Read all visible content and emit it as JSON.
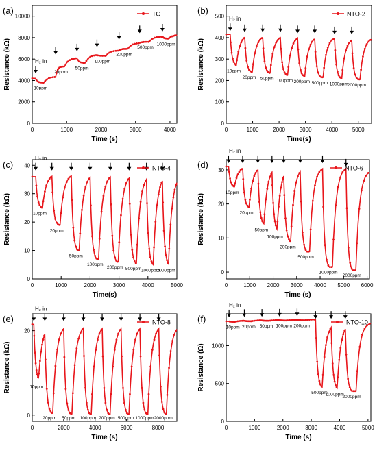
{
  "figure": {
    "panels": [
      {
        "id": "a",
        "label": "(a)",
        "legend": "TO"
      },
      {
        "id": "b",
        "label": "(b)",
        "legend": "NTO-2"
      },
      {
        "id": "c",
        "label": "(c)",
        "legend": "NTO-4"
      },
      {
        "id": "d",
        "label": "(d)",
        "legend": "NTO-6"
      },
      {
        "id": "e",
        "label": "(e)",
        "legend": "NTO-8"
      },
      {
        "id": "f",
        "label": "(f)",
        "legend": "NTO-10"
      }
    ]
  },
  "colors": {
    "series": "#e8161b",
    "axis": "#000000",
    "background": "#ffffff"
  },
  "chart_data": [
    {
      "type": "line",
      "panel_label": "(a)",
      "series_name": "TO",
      "xlabel": "Time (s)",
      "ylabel": "Resistance (kΩ)",
      "xlim": [
        0,
        4200
      ],
      "ylim": [
        0,
        11000
      ],
      "xticks": [
        0,
        1000,
        2000,
        3000,
        4000
      ],
      "yticks": [
        0,
        2000,
        4000,
        6000,
        8000,
        10000
      ],
      "legend_position": "top-right",
      "grid": false,
      "h2_in_label": "H₂ in",
      "concentration_labels": [
        "10ppm",
        "20ppm",
        "50ppm",
        "100ppm",
        "200ppm",
        "500ppm",
        "1000ppm"
      ],
      "cycles": [
        {
          "t_on": 100,
          "t_off": 680,
          "base": 4350,
          "response": 3800
        },
        {
          "t_on": 680,
          "t_off": 1300,
          "base": 6100,
          "response": 5300
        },
        {
          "t_on": 1300,
          "t_off": 1880,
          "base": 6400,
          "response": 5650
        },
        {
          "t_on": 1880,
          "t_off": 2520,
          "base": 6800,
          "response": 6300
        },
        {
          "t_on": 2520,
          "t_off": 3120,
          "base": 7500,
          "response": 6950
        },
        {
          "t_on": 3120,
          "t_off": 3780,
          "base": 8100,
          "response": 7600
        },
        {
          "t_on": 3780,
          "t_off": 4200,
          "base": 8250,
          "response": 7900
        }
      ],
      "start_value": 4200,
      "end_value": 8250
    },
    {
      "type": "line",
      "panel_label": "(b)",
      "series_name": "NTO-2",
      "xlabel": "Time(s)",
      "ylabel": "Resistance (kΩ)",
      "xlim": [
        0,
        5500
      ],
      "ylim": [
        0,
        550
      ],
      "xticks": [
        0,
        1000,
        2000,
        3000,
        4000,
        5000
      ],
      "yticks": [
        0,
        100,
        200,
        300,
        400,
        500
      ],
      "legend_position": "top-right",
      "grid": false,
      "h2_in_label": "H₂ in",
      "concentration_labels": [
        "10ppm",
        "20ppm",
        "50ppm",
        "100ppm",
        "200ppm",
        "500ppm",
        "1000ppm",
        "2000ppm"
      ],
      "cycles": [
        {
          "t_on": 150,
          "t_off": 700,
          "base": 415,
          "response": 270
        },
        {
          "t_on": 700,
          "t_off": 1380,
          "base": 410,
          "response": 240
        },
        {
          "t_on": 1380,
          "t_off": 2050,
          "base": 410,
          "response": 235
        },
        {
          "t_on": 2050,
          "t_off": 2700,
          "base": 410,
          "response": 225
        },
        {
          "t_on": 2700,
          "t_off": 3350,
          "base": 405,
          "response": 220
        },
        {
          "t_on": 3350,
          "t_off": 4100,
          "base": 405,
          "response": 215
        },
        {
          "t_on": 4100,
          "t_off": 4750,
          "base": 400,
          "response": 210
        },
        {
          "t_on": 4750,
          "t_off": 5500,
          "base": 400,
          "response": 205
        }
      ],
      "start_value": 415,
      "end_value": 390
    },
    {
      "type": "line",
      "panel_label": "(c)",
      "series_name": "NTO-4",
      "xlabel": "Time(s)",
      "ylabel": "Resistance (kΩ)",
      "xlim": [
        0,
        5000
      ],
      "ylim": [
        0,
        42
      ],
      "xticks": [
        0,
        1000,
        2000,
        3000,
        4000,
        5000
      ],
      "yticks": [
        0,
        10,
        20,
        30,
        40
      ],
      "legend_position": "top-right",
      "grid": false,
      "h2_in_label": "H₂ in",
      "concentration_labels": [
        "10ppm",
        "20ppm",
        "50ppm",
        "100ppm",
        "200ppm",
        "500ppm",
        "1000ppm",
        "2000ppm"
      ],
      "cycles": [
        {
          "t_on": 120,
          "t_off": 680,
          "base": 37,
          "response": 25
        },
        {
          "t_on": 680,
          "t_off": 1350,
          "base": 37,
          "response": 19
        },
        {
          "t_on": 1350,
          "t_off": 2000,
          "base": 37,
          "response": 10
        },
        {
          "t_on": 2000,
          "t_off": 2700,
          "base": 37,
          "response": 7
        },
        {
          "t_on": 2700,
          "t_off": 3350,
          "base": 37,
          "response": 6
        },
        {
          "t_on": 3350,
          "t_off": 3950,
          "base": 37,
          "response": 5.5
        },
        {
          "t_on": 3950,
          "t_off": 4500,
          "base": 37,
          "response": 5
        },
        {
          "t_on": 4500,
          "t_off": 5000,
          "base": 37,
          "response": 5
        }
      ],
      "start_value": 36,
      "end_value": 36
    },
    {
      "type": "line",
      "panel_label": "(d)",
      "series_name": "NTO-6",
      "xlabel": "Time (s)",
      "ylabel": "Resistance (kΩ)",
      "xlim": [
        0,
        6100
      ],
      "ylim": [
        -2,
        33
      ],
      "xticks": [
        0,
        1000,
        2000,
        3000,
        4000,
        5000,
        6000
      ],
      "yticks": [
        0,
        10,
        20,
        30
      ],
      "legend_position": "top-right",
      "grid": false,
      "h2_in_label": "H₂ in",
      "concentration_labels": [
        "10ppm",
        "20ppm",
        "50ppm",
        "100ppm",
        "200ppm",
        "500ppm",
        "1000ppm",
        "2000ppm"
      ],
      "cycles": [
        {
          "t_on": 100,
          "t_off": 700,
          "base": 31,
          "response": 25
        },
        {
          "t_on": 700,
          "t_off": 1350,
          "base": 31,
          "response": 19
        },
        {
          "t_on": 1350,
          "t_off": 1950,
          "base": 31,
          "response": 14
        },
        {
          "t_on": 1950,
          "t_off": 2450,
          "base": 31,
          "response": 12
        },
        {
          "t_on": 2450,
          "t_off": 3150,
          "base": 31,
          "response": 9
        },
        {
          "t_on": 3150,
          "t_off": 4100,
          "base": 31,
          "response": 6
        },
        {
          "t_on": 4100,
          "t_off": 5100,
          "base": 31,
          "response": 1.5
        },
        {
          "t_on": 5100,
          "t_off": 6100,
          "base": 30,
          "response": 0.5
        }
      ],
      "start_value": 31,
      "end_value": 29
    },
    {
      "type": "line",
      "panel_label": "(e)",
      "series_name": "NTO-8",
      "xlabel": "Time (s)",
      "ylabel": "Resistance (kΩ)",
      "xlim": [
        0,
        9200
      ],
      "ylim": [
        -1.5,
        24
      ],
      "xticks": [
        0,
        2000,
        4000,
        6000,
        8000
      ],
      "yticks": [
        0,
        20
      ],
      "legend_position": "top-right",
      "grid": false,
      "h2_in_label": "H₂ in",
      "concentration_labels": [
        "10ppm",
        "20ppm",
        "50ppm",
        "100ppm",
        "200ppm",
        "500ppm",
        "1000ppm",
        "2000ppm"
      ],
      "cycles": [
        {
          "t_on": 100,
          "t_off": 800,
          "base": 21.5,
          "response": 8
        },
        {
          "t_on": 800,
          "t_off": 2000,
          "base": 21.5,
          "response": 0.5
        },
        {
          "t_on": 2000,
          "t_off": 3250,
          "base": 21.5,
          "response": 0.3
        },
        {
          "t_on": 3250,
          "t_off": 4450,
          "base": 21.5,
          "response": 0.2
        },
        {
          "t_on": 4450,
          "t_off": 5650,
          "base": 21.5,
          "response": 0.2
        },
        {
          "t_on": 5650,
          "t_off": 6850,
          "base": 21.5,
          "response": 0.2
        },
        {
          "t_on": 6850,
          "t_off": 8050,
          "base": 21.5,
          "response": 0.2
        },
        {
          "t_on": 8050,
          "t_off": 9200,
          "base": 21.5,
          "response": 0.2
        }
      ],
      "start_value": 21.5,
      "end_value": 21.5
    },
    {
      "type": "line",
      "panel_label": "(f)",
      "series_name": "NTO-10",
      "xlabel": "Time (s)",
      "ylabel": "Resistance (Ω)",
      "xlim": [
        0,
        5100
      ],
      "ylim": [
        0,
        1420
      ],
      "xticks": [
        0,
        1000,
        2000,
        3000,
        4000,
        5000
      ],
      "yticks": [
        0,
        500,
        1000
      ],
      "legend_position": "top-right",
      "grid": false,
      "h2_in_label": "H₂ in",
      "concentration_labels": [
        "10ppm",
        "20ppm",
        "50ppm",
        "100ppm",
        "200ppm",
        "500ppm",
        "1000ppm",
        "2000ppm"
      ],
      "cycles": [
        {
          "t_on": 100,
          "t_off": 640,
          "base": 1330,
          "response": 1315
        },
        {
          "t_on": 640,
          "t_off": 1260,
          "base": 1335,
          "response": 1322
        },
        {
          "t_on": 1260,
          "t_off": 1880,
          "base": 1338,
          "response": 1328
        },
        {
          "t_on": 1880,
          "t_off": 2500,
          "base": 1340,
          "response": 1332
        },
        {
          "t_on": 2500,
          "t_off": 3150,
          "base": 1345,
          "response": 1335
        },
        {
          "t_on": 3150,
          "t_off": 3700,
          "base": 1310,
          "response": 450
        },
        {
          "t_on": 3700,
          "t_off": 4200,
          "base": 1310,
          "response": 430
        },
        {
          "t_on": 4200,
          "t_off": 5100,
          "base": 1310,
          "response": 400
        }
      ],
      "start_value": 1320,
      "end_value": 1315
    }
  ]
}
